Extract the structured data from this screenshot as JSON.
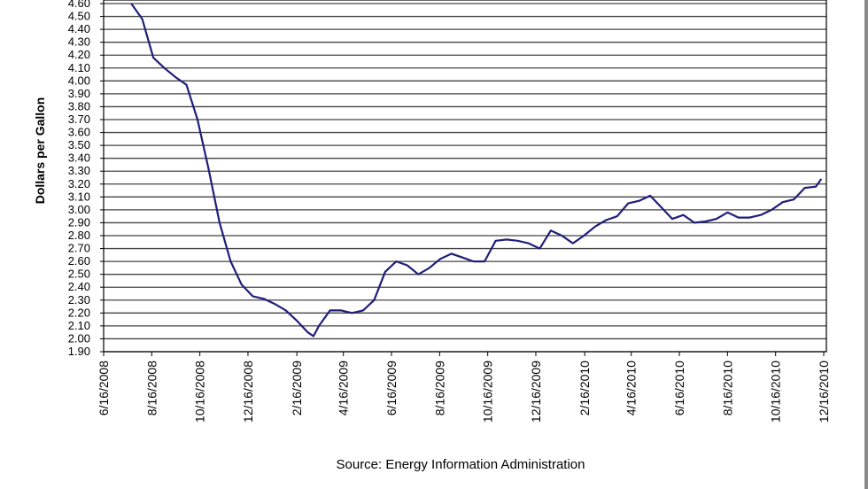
{
  "chart_data": {
    "type": "line",
    "y_label": "Dollars per Gallon",
    "source": "Source:  Energy Information Administration",
    "color": "#1f1f7a",
    "grid": true,
    "xlim": [
      "6/16/2008",
      "12/16/2010"
    ],
    "xticks": [
      "6/16/2008",
      "8/16/2008",
      "10/16/2008",
      "12/16/2008",
      "2/16/2009",
      "4/16/2009",
      "6/16/2009",
      "8/16/2009",
      "10/16/2009",
      "12/16/2009",
      "2/16/2010",
      "4/16/2010",
      "6/16/2010",
      "8/16/2010",
      "10/16/2010",
      "12/16/2010"
    ],
    "ylim": [
      1.9,
      4.6
    ],
    "yticks": [
      {
        "value": 1.9,
        "label": "1.90"
      },
      {
        "value": 2.0,
        "label": "2.00"
      },
      {
        "value": 2.1,
        "label": "2.10"
      },
      {
        "value": 2.2,
        "label": "2.20"
      },
      {
        "value": 2.3,
        "label": "2.30"
      },
      {
        "value": 2.4,
        "label": "2.40"
      },
      {
        "value": 2.5,
        "label": "2.50"
      },
      {
        "value": 2.6,
        "label": "2.60"
      },
      {
        "value": 2.7,
        "label": "2.70"
      },
      {
        "value": 2.8,
        "label": "2.80"
      },
      {
        "value": 2.9,
        "label": "2.90"
      },
      {
        "value": 3.0,
        "label": "3.00"
      },
      {
        "value": 3.1,
        "label": "3.10"
      },
      {
        "value": 3.2,
        "label": "3.20"
      },
      {
        "value": 3.3,
        "label": "3.30"
      },
      {
        "value": 3.4,
        "label": "3.40"
      },
      {
        "value": 3.5,
        "label": "3.50"
      },
      {
        "value": 3.6,
        "label": "3.60"
      },
      {
        "value": 3.7,
        "label": "3.70"
      },
      {
        "value": 3.8,
        "label": "3.80"
      },
      {
        "value": 3.9,
        "label": "3.90"
      },
      {
        "value": 4.0,
        "label": "4.00"
      },
      {
        "value": 4.1,
        "label": "4.10"
      },
      {
        "value": 4.2,
        "label": "4.20"
      },
      {
        "value": 4.3,
        "label": "4.30"
      },
      {
        "value": 4.4,
        "label": "4.40"
      },
      {
        "value": 4.5,
        "label": "4.50"
      },
      {
        "value": 4.6,
        "label": "4.60"
      }
    ],
    "x": [
      "7/21/2008",
      "8/4/2008",
      "8/18/2008",
      "9/1/2008",
      "9/15/2008",
      "9/29/2008",
      "10/13/2008",
      "10/27/2008",
      "11/10/2008",
      "11/24/2008",
      "12/8/2008",
      "12/22/2008",
      "1/5/2009",
      "1/19/2009",
      "2/2/2009",
      "2/16/2009",
      "3/2/2009",
      "3/9/2009",
      "3/16/2009",
      "3/30/2009",
      "4/13/2009",
      "4/27/2009",
      "5/11/2009",
      "5/25/2009",
      "6/8/2009",
      "6/22/2009",
      "7/6/2009",
      "7/20/2009",
      "8/3/2009",
      "8/17/2009",
      "8/31/2009",
      "9/14/2009",
      "9/28/2009",
      "10/12/2009",
      "10/26/2009",
      "11/9/2009",
      "11/23/2009",
      "12/7/2009",
      "12/21/2009",
      "1/4/2010",
      "1/18/2010",
      "2/1/2010",
      "2/15/2010",
      "3/1/2010",
      "3/15/2010",
      "3/29/2010",
      "4/12/2010",
      "4/26/2010",
      "5/10/2010",
      "5/24/2010",
      "6/7/2010",
      "6/21/2010",
      "7/5/2010",
      "7/19/2010",
      "8/2/2010",
      "8/16/2010",
      "8/30/2010",
      "9/13/2010",
      "9/27/2010",
      "10/11/2010",
      "10/25/2010",
      "11/8/2010",
      "11/22/2010",
      "12/6/2010",
      "12/13/2010"
    ],
    "values": [
      4.6,
      4.48,
      4.18,
      4.1,
      4.03,
      3.97,
      3.7,
      3.32,
      2.9,
      2.6,
      2.42,
      2.33,
      2.31,
      2.27,
      2.22,
      2.14,
      2.05,
      2.02,
      2.1,
      2.22,
      2.22,
      2.2,
      2.22,
      2.3,
      2.52,
      2.6,
      2.57,
      2.5,
      2.55,
      2.62,
      2.66,
      2.63,
      2.6,
      2.6,
      2.76,
      2.77,
      2.76,
      2.74,
      2.7,
      2.84,
      2.8,
      2.74,
      2.8,
      2.87,
      2.92,
      2.95,
      3.05,
      3.07,
      3.11,
      3.02,
      2.93,
      2.96,
      2.9,
      2.91,
      2.93,
      2.98,
      2.94,
      2.94,
      2.96,
      3.0,
      3.06,
      3.08,
      3.17,
      3.18,
      3.24
    ]
  }
}
